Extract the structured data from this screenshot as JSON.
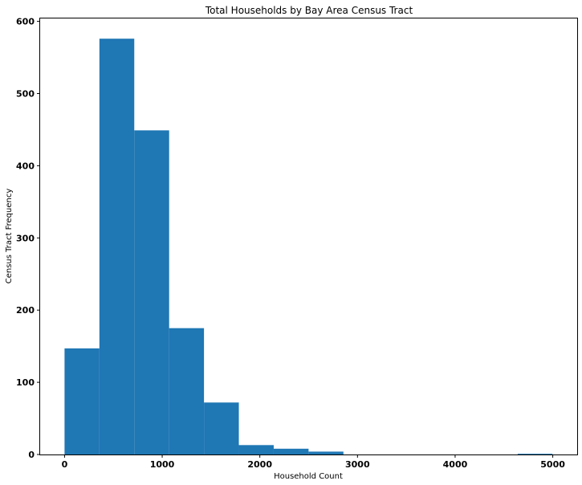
{
  "chart_data": {
    "type": "bar",
    "title": "Total Households by Bay Area Census Tract",
    "xlabel": "Household Count",
    "ylabel": "Census Tract Frequency",
    "bins": [
      {
        "x0": 0,
        "x1": 357,
        "count": 147
      },
      {
        "x0": 357,
        "x1": 714,
        "count": 576
      },
      {
        "x0": 714,
        "x1": 1071,
        "count": 449
      },
      {
        "x0": 1071,
        "x1": 1428,
        "count": 175
      },
      {
        "x0": 1428,
        "x1": 1785,
        "count": 72
      },
      {
        "x0": 1785,
        "x1": 2142,
        "count": 13
      },
      {
        "x0": 2142,
        "x1": 2499,
        "count": 8
      },
      {
        "x0": 2499,
        "x1": 2856,
        "count": 4
      },
      {
        "x0": 2856,
        "x1": 3213,
        "count": 0
      },
      {
        "x0": 3213,
        "x1": 3570,
        "count": 0
      },
      {
        "x0": 3570,
        "x1": 3927,
        "count": 0
      },
      {
        "x0": 3927,
        "x1": 4284,
        "count": 0
      },
      {
        "x0": 4284,
        "x1": 4641,
        "count": 0
      },
      {
        "x0": 4641,
        "x1": 4998,
        "count": 1
      }
    ],
    "xlim": [
      -250,
      5250
    ],
    "ylim": [
      0,
      604
    ],
    "xticks": [
      0,
      1000,
      2000,
      3000,
      4000,
      5000
    ],
    "yticks": [
      0,
      100,
      200,
      300,
      400,
      500,
      600
    ],
    "bar_color": "#1f77b4",
    "grid": false
  }
}
